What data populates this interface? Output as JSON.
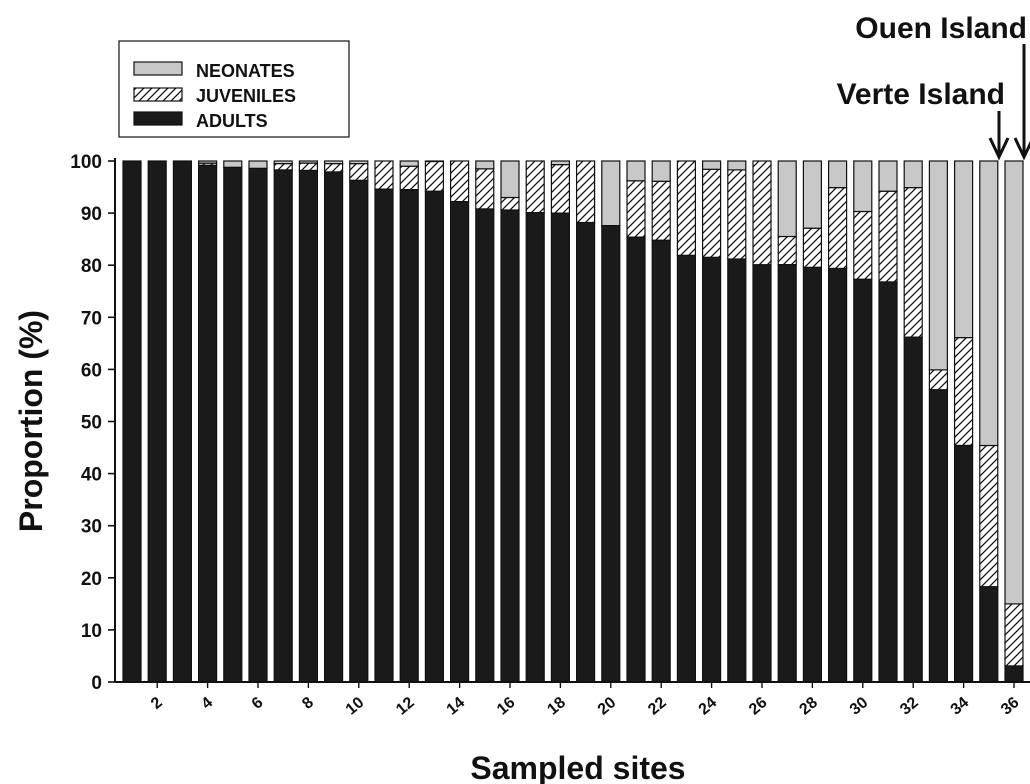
{
  "chart_data": {
    "type": "bar",
    "stacked": true,
    "xlabel": "Sampled sites",
    "ylabel": "Proportion (%)",
    "ylim": [
      0,
      100
    ],
    "yticks": [
      0,
      10,
      20,
      30,
      40,
      50,
      60,
      70,
      80,
      90,
      100
    ],
    "categories": [
      "1",
      "2",
      "3",
      "4",
      "5",
      "6",
      "7",
      "8",
      "9",
      "10",
      "11",
      "12",
      "13",
      "14",
      "15",
      "16",
      "17",
      "18",
      "19",
      "20",
      "21",
      "22",
      "23",
      "24",
      "25",
      "26",
      "27",
      "28",
      "29",
      "30",
      "31",
      "32",
      "33",
      "34",
      "35",
      "36"
    ],
    "x_tick_labels": [
      "2",
      "4",
      "6",
      "8",
      "10",
      "12",
      "14",
      "16",
      "18",
      "20",
      "22",
      "24",
      "26",
      "28",
      "30",
      "32",
      "34",
      "36"
    ],
    "legend_position": "top-left",
    "series": [
      {
        "name": "ADULTS",
        "color": "#1a1a1a",
        "pattern": "solid",
        "values": [
          100,
          100,
          100,
          99.2,
          98.8,
          98.6,
          98.3,
          98.2,
          97.9,
          96.3,
          94.6,
          94.5,
          94.2,
          92.2,
          90.8,
          90.6,
          90.1,
          90,
          88.2,
          87.6,
          85.4,
          84.8,
          81.9,
          81.5,
          81.2,
          80.1,
          80.1,
          79.6,
          79.4,
          77.3,
          76.8,
          66.2,
          56.1,
          45.4,
          18.3,
          3.1
        ]
      },
      {
        "name": "JUVENILES",
        "color": "#ffffff",
        "pattern": "hatch",
        "values": [
          0,
          0,
          0,
          0.4,
          0,
          0,
          1.2,
          1.4,
          1.6,
          3.2,
          5.4,
          4.5,
          5.7,
          7.8,
          7.7,
          2.4,
          9.9,
          9.3,
          11.8,
          0,
          10.8,
          11.3,
          18.1,
          16.9,
          17.1,
          19.9,
          5.4,
          7.5,
          15.5,
          13,
          17.4,
          28.7,
          3.8,
          20.7,
          27.1,
          11.9
        ]
      },
      {
        "name": "NEONATES",
        "color": "#c8c8c8",
        "pattern": "solid",
        "values": [
          0,
          0,
          0,
          0.4,
          1.2,
          1.4,
          0.5,
          0.4,
          0.5,
          0.5,
          0,
          1,
          0.1,
          0,
          1.5,
          7,
          0,
          0.7,
          0,
          12.4,
          3.8,
          3.9,
          0,
          1.6,
          1.7,
          0,
          14.5,
          12.9,
          5.1,
          9.7,
          5.8,
          5.1,
          40.1,
          33.9,
          54.6,
          85
        ]
      }
    ],
    "annotations": [
      {
        "text": "Ouen Island",
        "site": "36",
        "arrow": "down"
      },
      {
        "text": "Verte Island",
        "site": "35",
        "arrow": "down"
      }
    ]
  }
}
